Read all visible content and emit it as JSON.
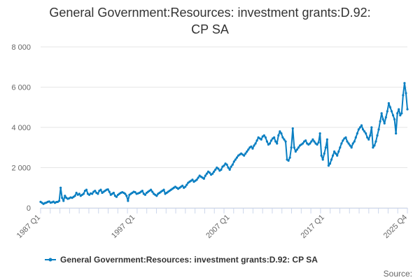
{
  "chart_data": {
    "type": "line",
    "title": "General Government:Resources: investment grants:D.92: CP SA",
    "title_lines": [
      "General Government:Resources: investment grants:D.92:",
      "CP SA"
    ],
    "xlabel": "",
    "ylabel": "",
    "x_range": [
      "1987 Q1",
      "2025 Q4"
    ],
    "x_tick_labels": [
      "1987 Q1",
      "1997 Q1",
      "2007 Q1",
      "2017 Q1",
      "2025 Q4"
    ],
    "y_tick_labels": [
      "0",
      "2 000",
      "4 000",
      "6 000",
      "8 000"
    ],
    "y_ticks": [
      0,
      2000,
      4000,
      6000,
      8000
    ],
    "ylim": [
      0,
      8000
    ],
    "grid": true,
    "legend_position": "bottom",
    "credit": "Source:",
    "series": [
      {
        "name": "General Government:Resources: investment grants:D.92: CP SA",
        "color": "#0a7fc2",
        "values": [
          300,
          250,
          200,
          240,
          260,
          300,
          320,
          260,
          280,
          310,
          250,
          290,
          300,
          350,
          1000,
          500,
          350,
          600,
          500,
          450,
          480,
          520,
          500,
          550,
          600,
          750,
          650,
          700,
          600,
          650,
          700,
          850,
          900,
          700,
          650,
          720,
          700,
          800,
          850,
          750,
          700,
          850,
          900,
          750,
          800,
          850,
          900,
          920,
          800,
          650,
          700,
          750,
          600,
          550,
          650,
          700,
          750,
          780,
          750,
          700,
          600,
          350,
          650,
          700,
          750,
          800,
          780,
          700,
          720,
          750,
          800,
          850,
          700,
          650,
          750,
          800,
          850,
          900,
          800,
          700,
          650,
          600,
          700,
          750,
          800,
          850,
          900,
          700,
          750,
          800,
          850,
          900,
          950,
          1000,
          1050,
          1000,
          950,
          1000,
          1050,
          1100,
          1000,
          1050,
          1150,
          1250,
          1300,
          1350,
          1400,
          1300,
          1350,
          1400,
          1500,
          1600,
          1550,
          1500,
          1450,
          1600,
          1700,
          1800,
          1750,
          1650,
          1700,
          1800,
          1900,
          2000,
          1950,
          1850,
          1900,
          2050,
          2100,
          2200,
          2150,
          2000,
          1900,
          2050,
          2150,
          2300,
          2400,
          2500,
          2600,
          2650,
          2700,
          2650,
          2600,
          2700,
          2800,
          2900,
          3000,
          3050,
          2950,
          3100,
          3200,
          3350,
          3500,
          3450,
          3400,
          3550,
          3600,
          3500,
          3300,
          3150,
          3200,
          3350,
          3450,
          3500,
          3300,
          3200,
          3600,
          3800,
          3700,
          3500,
          3400,
          3300,
          2400,
          2350,
          2500,
          3000,
          3950,
          3000,
          2800,
          2900,
          3000,
          3100,
          3150,
          3200,
          3300,
          3350,
          3200,
          3150,
          3200,
          3300,
          3400,
          3300,
          3200,
          3150,
          3250,
          3700,
          2600,
          2400,
          2700,
          3000,
          3400,
          2100,
          2200,
          2400,
          2600,
          2800,
          2700,
          2600,
          2800,
          3000,
          3200,
          3350,
          3450,
          3500,
          3300,
          3200,
          3100,
          3000,
          3200,
          3300,
          3500,
          3700,
          3900,
          4000,
          4100,
          3900,
          3800,
          3700,
          3500,
          3400,
          3600,
          4000,
          3000,
          3100,
          3300,
          3600,
          3900,
          4300,
          4700,
          4400,
          4200,
          4500,
          4800,
          5200,
          5000,
          4800,
          4600,
          4400,
          3700,
          4700,
          4900,
          4600,
          4700,
          5600,
          6200,
          5700,
          4900
        ]
      }
    ]
  }
}
